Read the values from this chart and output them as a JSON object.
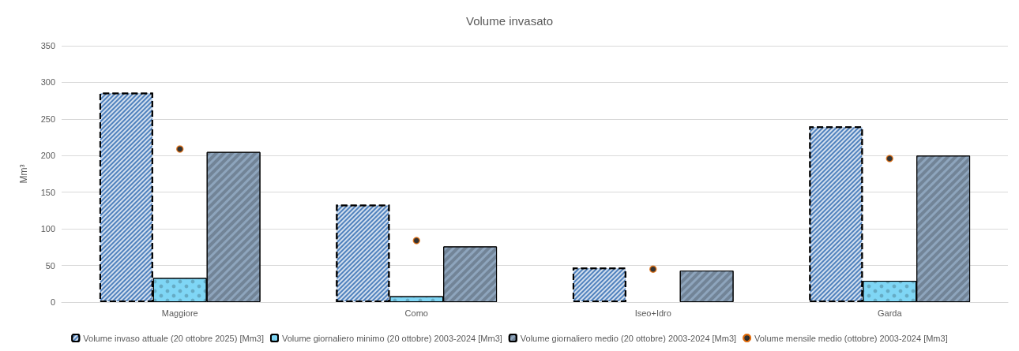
{
  "chart_data": {
    "type": "bar",
    "title": "Volume invasato",
    "ylabel": "Mm³",
    "categories": [
      "Maggiore",
      "Como",
      "Iseo+Idro",
      "Garda"
    ],
    "series": [
      {
        "name": "Volume invaso attuale (20 ottobre 2025) [Mm3]",
        "color": "#4f81bd",
        "line_style": "dashed",
        "values": [
          286,
          133,
          47,
          240
        ]
      },
      {
        "name": "Volume giornaliero minimo (20 ottobre) 2003-2024 [Mm3]",
        "color": "#7fd6f5",
        "values": [
          33,
          8,
          null,
          29
        ]
      },
      {
        "name": "Volume giornaliero medio (20 ottobre) 2003-2024 [Mm3]",
        "color": "#8ea5bd",
        "values": [
          205,
          76,
          43,
          200
        ]
      },
      {
        "type": "scatter",
        "name": "Volume mensile medio (ottobre) 2003-2024 [Mm3]",
        "color": "#000000",
        "x": [
          "Maggiore",
          "Como",
          "Iseo+Idro",
          "Garda"
        ],
        "values": [
          209,
          84,
          45,
          196
        ]
      }
    ],
    "ylim": [
      0,
      350
    ],
    "yticks": [
      0,
      50,
      100,
      150,
      200,
      250,
      300,
      350
    ],
    "grid": "y",
    "legend": "bottom",
    "marker": "circle"
  }
}
